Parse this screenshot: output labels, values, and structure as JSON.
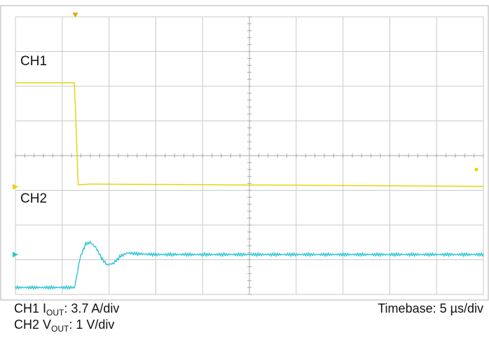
{
  "colors": {
    "grid": "#c9c9c9",
    "border": "#b0b0b0",
    "background": "#ffffff",
    "ch1": "#e6d200",
    "ch2": "#2ec4d6",
    "marker": "#e6a800"
  },
  "chart_data": {
    "type": "line",
    "grid": true,
    "divisions": {
      "horizontal": 10,
      "vertical": 8
    },
    "time_unit": "µs",
    "xlim": [
      0,
      50
    ],
    "series": [
      {
        "name": "CH1",
        "quantity": "IOUT",
        "unit": "A",
        "scale_per_div": 3.7,
        "x": [
          0,
          6.3,
          6.5,
          6.7,
          8,
          15,
          25,
          35,
          50
        ],
        "y": [
          11.1,
          11.1,
          6,
          0.2,
          0.3,
          0.25,
          0.2,
          0.15,
          0.05
        ]
      },
      {
        "name": "CH2",
        "quantity": "VOUT",
        "unit": "V",
        "scale_per_div": 1,
        "x": [
          0,
          6.3,
          6.4,
          6.9,
          7.5,
          8.0,
          8.6,
          9.2,
          9.8,
          10.5,
          11.2,
          12,
          13,
          15,
          20,
          30,
          40,
          50
        ],
        "y": [
          -0.95,
          -0.95,
          -0.85,
          -0.1,
          0.3,
          0.35,
          0.2,
          -0.1,
          -0.3,
          -0.25,
          -0.05,
          0.05,
          0.02,
          0,
          0,
          0,
          0,
          0
        ]
      }
    ]
  },
  "labels": {
    "ch1": "CH1",
    "ch2": "CH2",
    "footer": {
      "ch1_prefix": "CH1 I",
      "ch1_sub": "OUT",
      "ch1_scale": ": 3.7 A/div",
      "ch2_prefix": "CH2 V",
      "ch2_sub": "OUT",
      "ch2_scale": ": 1 V/div",
      "timebase": "Timebase: 5 µs/div"
    }
  }
}
